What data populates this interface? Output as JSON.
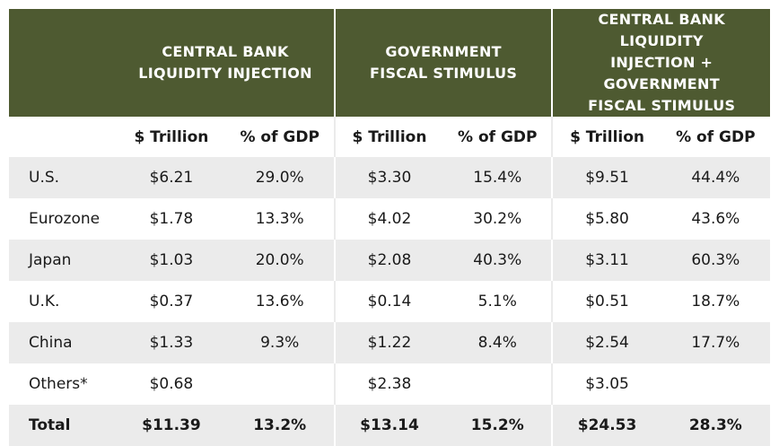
{
  "header": {
    "group_central_bank": "CENTRAL BANK LIQUIDITY INJECTION",
    "group_central_bank_line1": "CENTRAL BANK",
    "group_central_bank_line2": "LIQUIDITY INJECTION",
    "group_fiscal_line1": "GOVERNMENT",
    "group_fiscal_line2": "FISCAL STIMULUS",
    "group_combined_line1": "CENTRAL BANK LIQUIDITY",
    "group_combined_line2": "INJECTION + GOVERNMENT",
    "group_combined_line3": "FISCAL STIMULUS"
  },
  "columns": [
    "$ Trillion",
    "% of GDP",
    "$ Trillion",
    "% of GDP",
    "$ Trillion",
    "% of GDP"
  ],
  "rows": [
    {
      "country": "U.S.",
      "values": [
        "$6.21",
        "29.0%",
        "$3.30",
        "15.4%",
        "$9.51",
        "44.4%"
      ]
    },
    {
      "country": "Eurozone",
      "values": [
        "$1.78",
        "13.3%",
        "$4.02",
        "30.2%",
        "$5.80",
        "43.6%"
      ]
    },
    {
      "country": "Japan",
      "values": [
        "$1.03",
        "20.0%",
        "$2.08",
        "40.3%",
        "$3.11",
        "60.3%"
      ]
    },
    {
      "country": "U.K.",
      "values": [
        "$0.37",
        "13.6%",
        "$0.14",
        "5.1%",
        "$0.51",
        "18.7%"
      ]
    },
    {
      "country": "China",
      "values": [
        "$1.33",
        "9.3%",
        "$1.22",
        "8.4%",
        "$2.54",
        "17.7%"
      ]
    },
    {
      "country": "Others*",
      "values": [
        "$0.68",
        "",
        "$2.38",
        "",
        "$3.05",
        ""
      ]
    },
    {
      "country": "Total",
      "values": [
        "$11.39",
        "13.2%",
        "$13.14",
        "15.2%",
        "$24.53",
        "28.3%"
      ]
    }
  ],
  "colors": {
    "header_bg": "#4e5a31",
    "row_shade": "#ebebeb"
  }
}
